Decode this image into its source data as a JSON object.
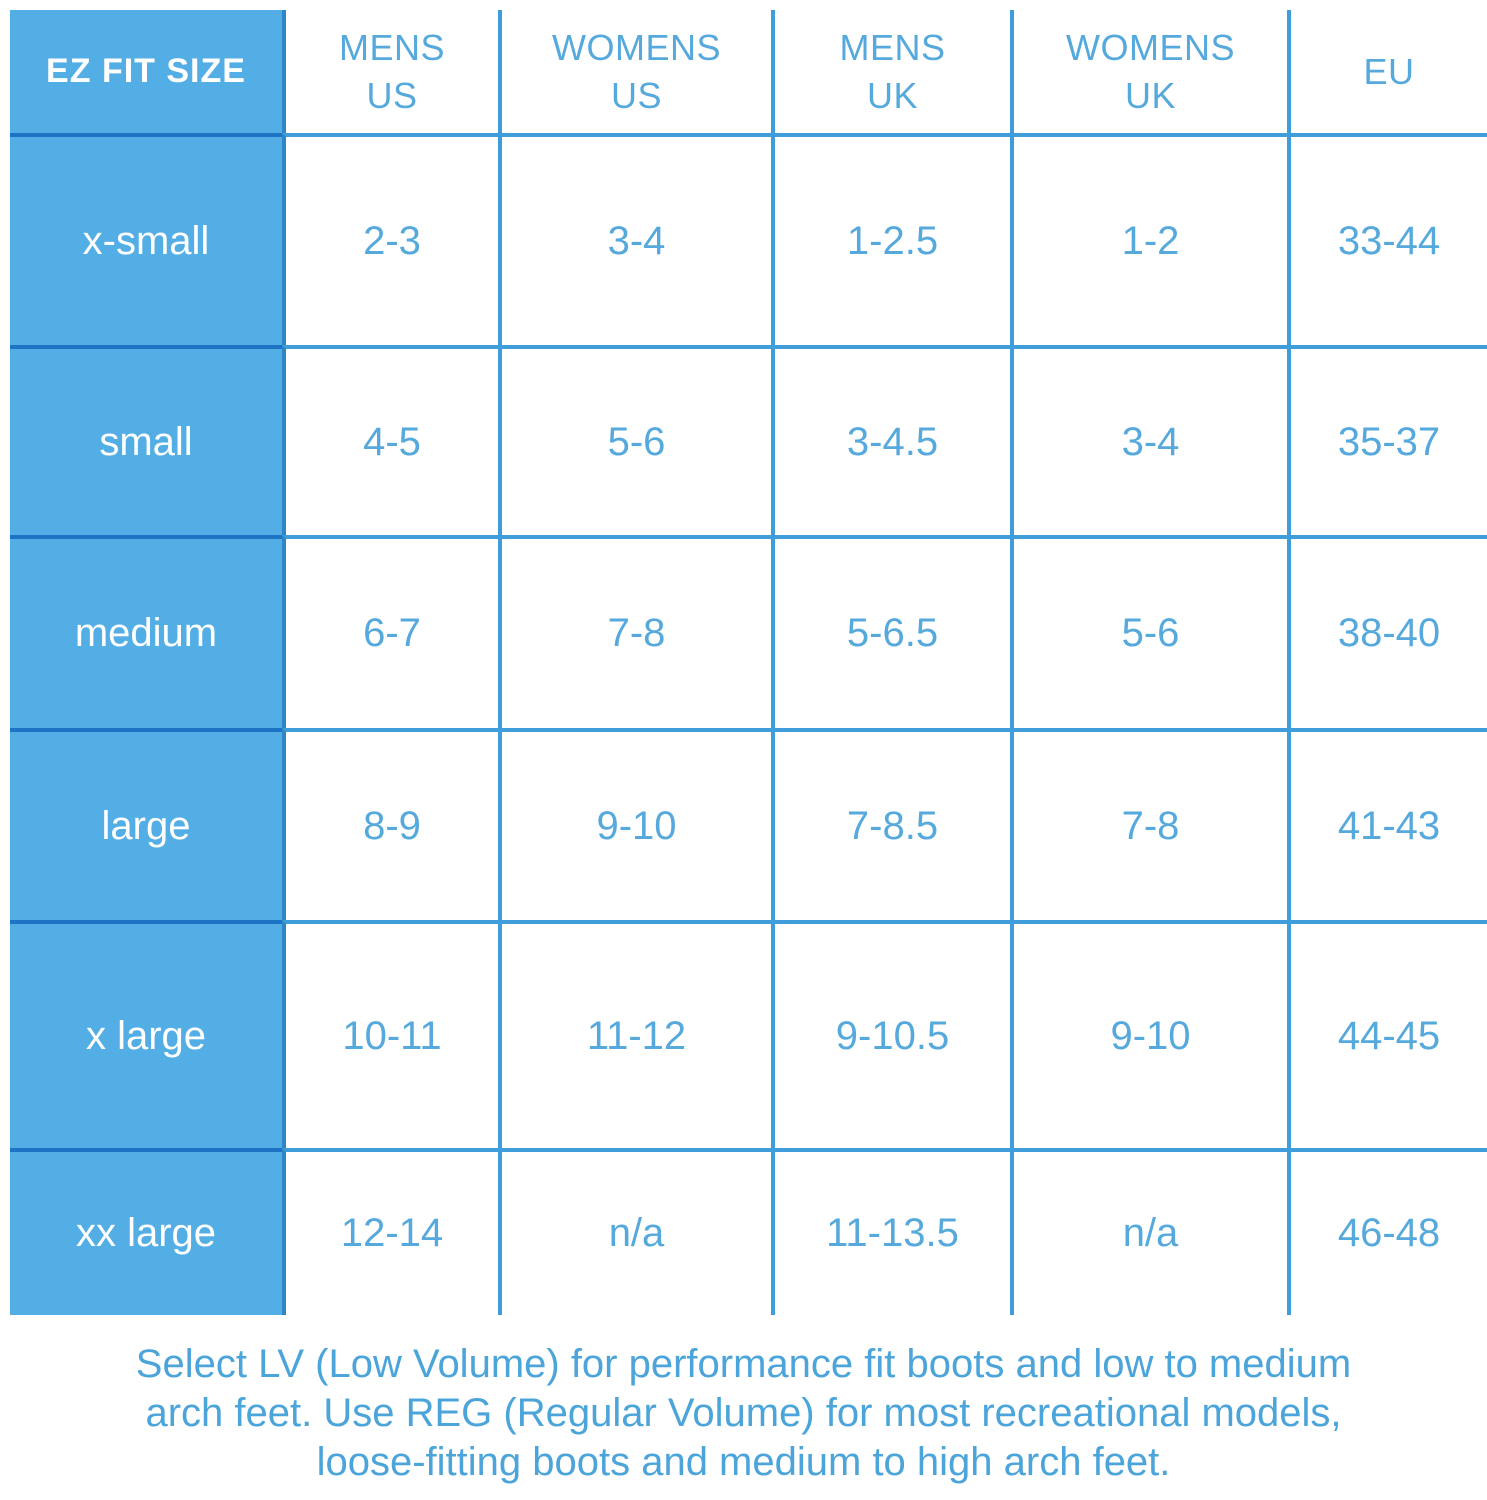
{
  "colors": {
    "blue_fill": "#54aee6",
    "grid_line": "#3f9dda",
    "grid_line_dark": "#1e74c4",
    "column_divider_dark": "#2e86c8",
    "header_text": "#ffffff",
    "value_text": "#56a9dc",
    "note_text": "#4ba4da"
  },
  "chart_data": {
    "type": "table",
    "title": "EZ FIT SIZE",
    "columns": [
      "EZ FIT SIZE",
      "MENS US",
      "WOMENS US",
      "MENS UK",
      "WOMENS UK",
      "EU"
    ],
    "rows": [
      [
        "x-small",
        "2-3",
        "3-4",
        "1-2.5",
        "1-2",
        "33-44"
      ],
      [
        "small",
        "4-5",
        "5-6",
        "3-4.5",
        "3-4",
        "35-37"
      ],
      [
        "medium",
        "6-7",
        "7-8",
        "5-6.5",
        "5-6",
        "38-40"
      ],
      [
        "large",
        "8-9",
        "9-10",
        "7-8.5",
        "7-8",
        "41-43"
      ],
      [
        "x large",
        "10-11",
        "11-12",
        "9-10.5",
        "9-10",
        "44-45"
      ],
      [
        "xx large",
        "12-14",
        "n/a",
        "11-13.5",
        "n/a",
        "46-48"
      ]
    ],
    "legend_position": "none",
    "grid": true
  },
  "footer": {
    "lines": [
      "Select LV (Low Volume) for performance fit boots and low to medium",
      "arch feet. Use REG (Regular Volume) for most recreational models,",
      "loose-fitting boots and medium to high arch feet."
    ]
  }
}
